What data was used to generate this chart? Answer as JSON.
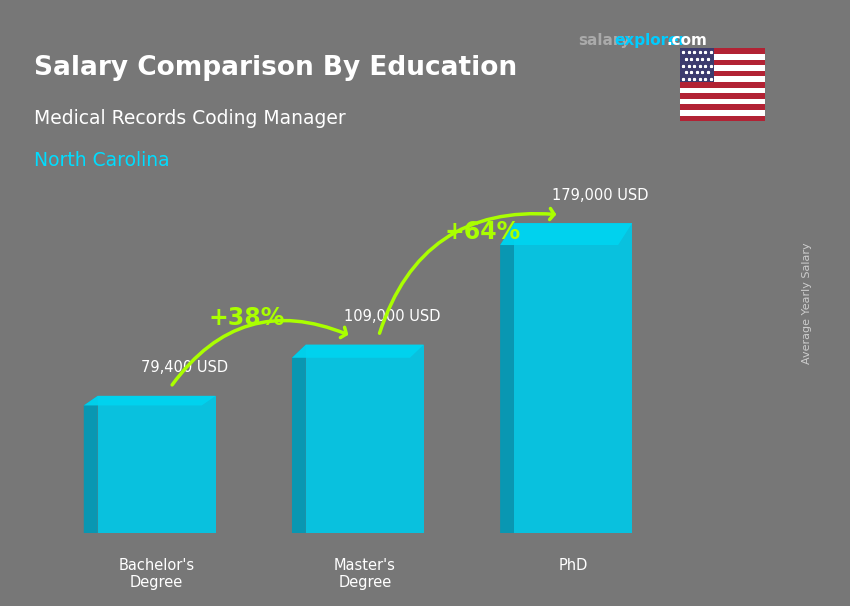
{
  "title_main": "Salary Comparison By Education",
  "subtitle": "Medical Records Coding Manager",
  "location": "North Carolina",
  "ylabel": "Average Yearly Salary",
  "categories": [
    "Bachelor's\nDegree",
    "Master's\nDegree",
    "PhD"
  ],
  "values": [
    79400,
    109000,
    179000
  ],
  "value_labels": [
    "79,400 USD",
    "109,000 USD",
    "179,000 USD"
  ],
  "pct_labels": [
    "+38%",
    "+64%"
  ],
  "bar_color_top": "#00d4f0",
  "bar_color_mid": "#00aacc",
  "bar_color_bottom": "#008fb8",
  "bar_color_face": "#00c8e8",
  "bar_color_side": "#009ab8",
  "background_color": "#888888",
  "title_color": "#ffffff",
  "subtitle_color": "#ffffff",
  "location_color": "#00ddff",
  "value_label_color": "#ffffff",
  "pct_color": "#aaff00",
  "arrow_color": "#aaff00",
  "site_salary_color": "#aaaaaa",
  "site_explorer_color": "#00ccff",
  "site_dot_com_color": "#ffffff",
  "ylim": [
    0,
    210000
  ],
  "figsize": [
    8.5,
    6.06
  ],
  "dpi": 100
}
